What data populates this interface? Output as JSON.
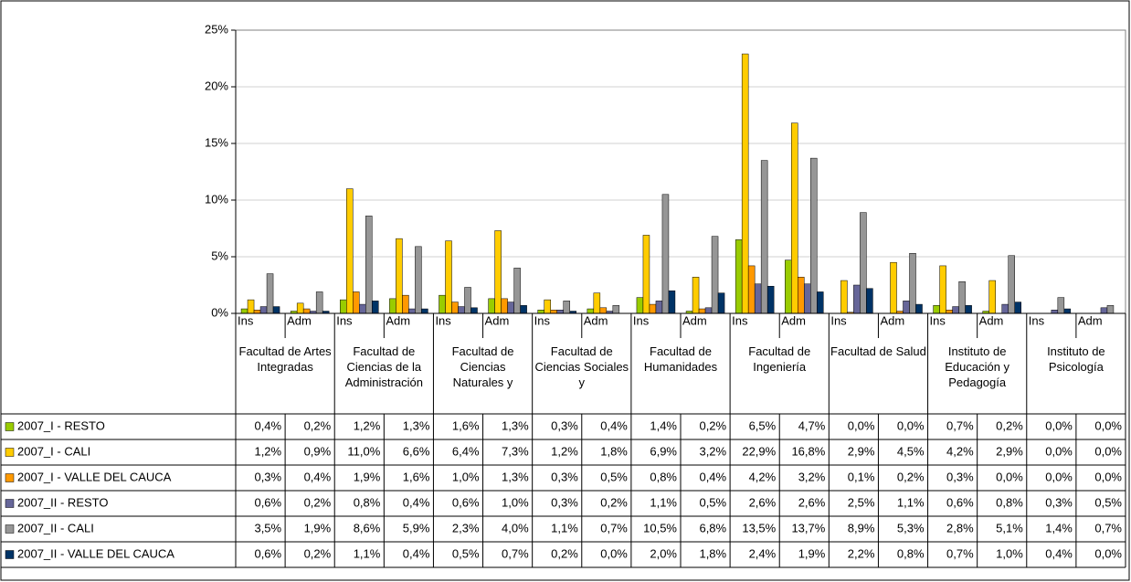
{
  "chart_data": {
    "type": "bar",
    "categories": [
      "Ins",
      "Adm",
      "Ins",
      "Adm",
      "Ins",
      "Adm",
      "Ins",
      "Adm",
      "Ins",
      "Adm",
      "Ins",
      "Adm",
      "Ins",
      "Adm",
      "Ins",
      "Adm",
      "Ins",
      "Adm"
    ],
    "groups": [
      "Facultad de Artes Integradas",
      "Facultad de Ciencias de la Administración",
      "Facultad de Ciencias Naturales y",
      "Facultad de Ciencias Sociales y",
      "Facultad de Humanidades",
      "Facultad de Ingeniería",
      "Facultad de Salud",
      "Instituto de Educación y Pedagogía",
      "Instituto de Psicología"
    ],
    "series": [
      {
        "name": "2007_I - RESTO",
        "color": "#99cc00",
        "values": [
          0.4,
          0.2,
          1.2,
          1.3,
          1.6,
          1.3,
          0.3,
          0.4,
          1.4,
          0.2,
          6.5,
          4.7,
          0.0,
          0.0,
          0.7,
          0.2,
          0.0,
          0.0
        ],
        "value_labels": [
          "0,4%",
          "0,2%",
          "1,2%",
          "1,3%",
          "1,6%",
          "1,3%",
          "0,3%",
          "0,4%",
          "1,4%",
          "0,2%",
          "6,5%",
          "4,7%",
          "0,0%",
          "0,0%",
          "0,7%",
          "0,2%",
          "0,0%",
          "0,0%"
        ]
      },
      {
        "name": "2007_I - CALI",
        "color": "#ffcc00",
        "values": [
          1.2,
          0.9,
          11.0,
          6.6,
          6.4,
          7.3,
          1.2,
          1.8,
          6.9,
          3.2,
          22.9,
          16.8,
          2.9,
          4.5,
          4.2,
          2.9,
          0.0,
          0.0
        ],
        "value_labels": [
          "1,2%",
          "0,9%",
          "11,0%",
          "6,6%",
          "6,4%",
          "7,3%",
          "1,2%",
          "1,8%",
          "6,9%",
          "3,2%",
          "22,9%",
          "16,8%",
          "2,9%",
          "4,5%",
          "4,2%",
          "2,9%",
          "0,0%",
          "0,0%"
        ]
      },
      {
        "name": "2007_I - VALLE DEL CAUCA",
        "color": "#ff9900",
        "values": [
          0.3,
          0.4,
          1.9,
          1.6,
          1.0,
          1.3,
          0.3,
          0.5,
          0.8,
          0.4,
          4.2,
          3.2,
          0.1,
          0.2,
          0.3,
          0.0,
          0.0,
          0.0
        ],
        "value_labels": [
          "0,3%",
          "0,4%",
          "1,9%",
          "1,6%",
          "1,0%",
          "1,3%",
          "0,3%",
          "0,5%",
          "0,8%",
          "0,4%",
          "4,2%",
          "3,2%",
          "0,1%",
          "0,2%",
          "0,3%",
          "0,0%",
          "0,0%",
          "0,0%"
        ]
      },
      {
        "name": "2007_II - RESTO",
        "color": "#666699",
        "values": [
          0.6,
          0.2,
          0.8,
          0.4,
          0.6,
          1.0,
          0.3,
          0.2,
          1.1,
          0.5,
          2.6,
          2.6,
          2.5,
          1.1,
          0.6,
          0.8,
          0.3,
          0.5
        ],
        "value_labels": [
          "0,6%",
          "0,2%",
          "0,8%",
          "0,4%",
          "0,6%",
          "1,0%",
          "0,3%",
          "0,2%",
          "1,1%",
          "0,5%",
          "2,6%",
          "2,6%",
          "2,5%",
          "1,1%",
          "0,6%",
          "0,8%",
          "0,3%",
          "0,5%"
        ]
      },
      {
        "name": "2007_II - CALI",
        "color": "#969696",
        "values": [
          3.5,
          1.9,
          8.6,
          5.9,
          2.3,
          4.0,
          1.1,
          0.7,
          10.5,
          6.8,
          13.5,
          13.7,
          8.9,
          5.3,
          2.8,
          5.1,
          1.4,
          0.7
        ],
        "value_labels": [
          "3,5%",
          "1,9%",
          "8,6%",
          "5,9%",
          "2,3%",
          "4,0%",
          "1,1%",
          "0,7%",
          "10,5%",
          "6,8%",
          "13,5%",
          "13,7%",
          "8,9%",
          "5,3%",
          "2,8%",
          "5,1%",
          "1,4%",
          "0,7%"
        ]
      },
      {
        "name": "2007_II - VALLE DEL CAUCA",
        "color": "#003366",
        "values": [
          0.6,
          0.2,
          1.1,
          0.4,
          0.5,
          0.7,
          0.2,
          0.0,
          2.0,
          1.8,
          2.4,
          1.9,
          2.2,
          0.8,
          0.7,
          1.0,
          0.4,
          0.0
        ],
        "value_labels": [
          "0,6%",
          "0,2%",
          "1,1%",
          "0,4%",
          "0,5%",
          "0,7%",
          "0,2%",
          "0,0%",
          "2,0%",
          "1,8%",
          "2,4%",
          "1,9%",
          "2,2%",
          "0,8%",
          "0,7%",
          "1,0%",
          "0,4%",
          "0,0%"
        ]
      }
    ],
    "ylim": [
      0,
      25
    ],
    "yticks": [
      {
        "value": 0,
        "label": "0%"
      },
      {
        "value": 5,
        "label": "5%"
      },
      {
        "value": 10,
        "label": "10%"
      },
      {
        "value": 15,
        "label": "15%"
      },
      {
        "value": 20,
        "label": "20%"
      },
      {
        "value": 25,
        "label": "25%"
      }
    ],
    "grid": true,
    "legend": "table"
  }
}
